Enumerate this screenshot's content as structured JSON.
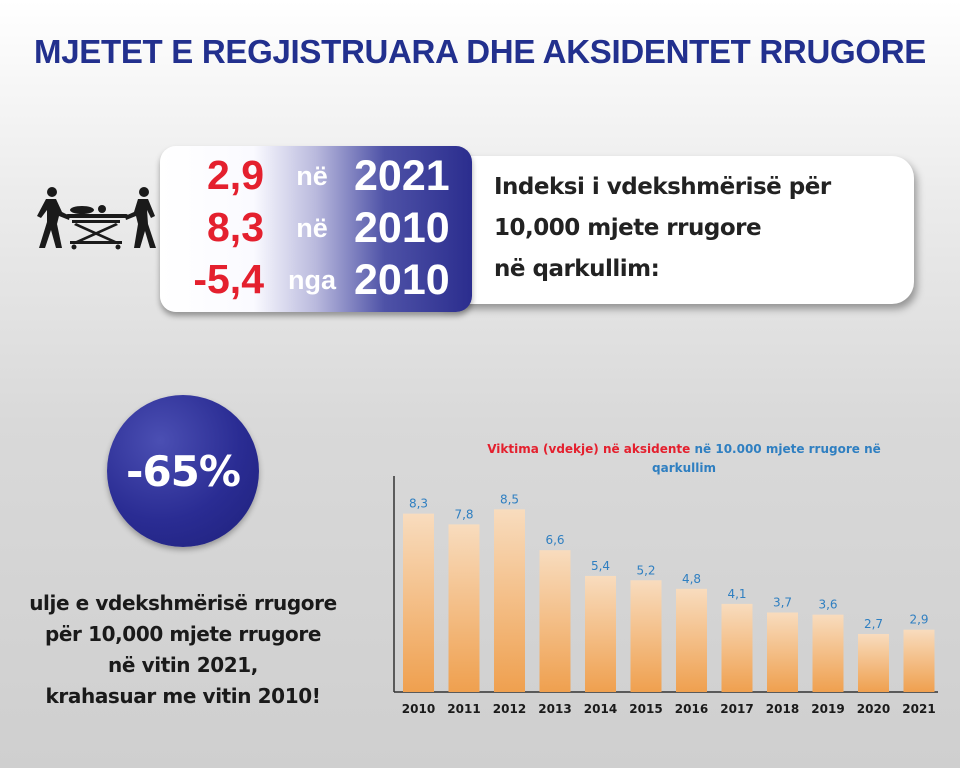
{
  "title": "MJETET E REGJISTRUARA DHE AKSIDENTET RRUGORE",
  "stats": [
    {
      "value": "2,9",
      "connector": "në",
      "year": "2021"
    },
    {
      "value": "8,3",
      "connector": "në",
      "year": "2010"
    },
    {
      "value": "-5,4",
      "connector": "nga",
      "year": "2010"
    }
  ],
  "index_label": {
    "line1": "Indeksi i vdekshmërisë për",
    "line2": "10,000 mjete rrugore",
    "line3": "në qarkullim:"
  },
  "reduction": {
    "value": "-65%",
    "line1": "ulje e vdekshmërisë rrugore",
    "line2": "për 10,000 mjete rrugore",
    "line3": "në vitin 2021,",
    "line4": "krahasuar me vitin 2010!"
  },
  "colors": {
    "title": "#22308e",
    "red": "#e4202e",
    "blue": "#2f7fc1",
    "bar_top": "#f8dcbe",
    "bar_bottom": "#efa04f"
  },
  "chart_data": {
    "type": "bar",
    "title_red": "Viktima (vdekje) në aksidente",
    "title_blue": "në 10.000 mjete rrugore në qarkullim",
    "categories": [
      "2010",
      "2011",
      "2012",
      "2013",
      "2014",
      "2015",
      "2016",
      "2017",
      "2018",
      "2019",
      "2020",
      "2021"
    ],
    "values": [
      8.3,
      7.8,
      8.5,
      6.6,
      5.4,
      5.2,
      4.8,
      4.1,
      3.7,
      3.6,
      2.7,
      2.9
    ],
    "value_labels": [
      "8,3",
      "7,8",
      "8,5",
      "6,6",
      "5,4",
      "5,2",
      "4,8",
      "4,1",
      "3,7",
      "3,6",
      "2,7",
      "2,9"
    ],
    "xlabel": "",
    "ylabel": "",
    "ylim": [
      0,
      9.4
    ],
    "grid": false,
    "legend": "none"
  }
}
